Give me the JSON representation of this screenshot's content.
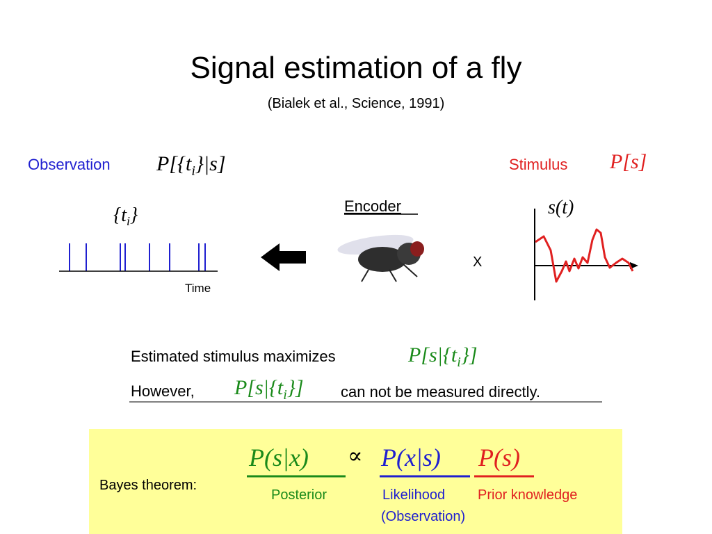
{
  "title": "Signal estimation of a fly",
  "subtitle": "(Bialek et al., Science, 1991)",
  "observation": {
    "label": "Observation",
    "formula": [
      "P[{t",
      "i",
      "}|s]"
    ]
  },
  "stimulus": {
    "label": "Stimulus",
    "formula": "P[s]",
    "signal": "s(t)"
  },
  "spikes": {
    "label": [
      "{t",
      "i",
      "}"
    ],
    "axis": "Time"
  },
  "encoder": "Encoder",
  "multiply": "X",
  "estimate": {
    "text": "Estimated stimulus maximizes",
    "formula": [
      "P[s|{t",
      "i",
      "}]"
    ]
  },
  "however": {
    "before": "However,",
    "formula": [
      "P[s|{t",
      "i",
      "}]"
    ],
    "after": "can not be measured directly."
  },
  "bayes": {
    "label": "Bayes theorem:",
    "posterior": "P(s|x)",
    "proportional": "∝",
    "likelihood": "P(x|s)",
    "prior": "P(s)",
    "posterior_label": "Posterior",
    "likelihood_label": "Likelihood",
    "likelihood_note": "(Observation)",
    "prior_label": "Prior knowledge"
  }
}
